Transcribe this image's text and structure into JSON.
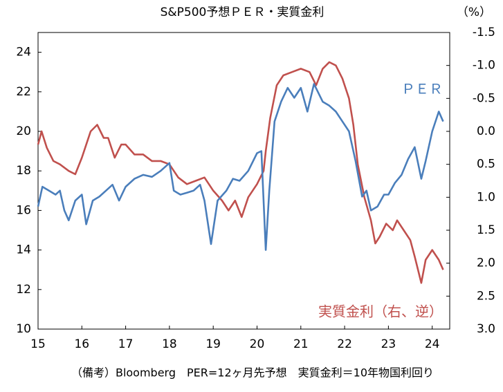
{
  "chart_data": {
    "type": "line",
    "title": "S&P500予想ＰＥＲ・実質金利",
    "y2_unit": "（%）",
    "footer": "（備考）Bloomberg　PER=12ヶ月先予想　実質金利＝10年物国利回り",
    "annotations": [
      "ＰＥＲ",
      "実質金利（右、逆）"
    ],
    "xlim": [
      15,
      24.4
    ],
    "xticks": [
      15,
      16,
      17,
      18,
      19,
      20,
      21,
      22,
      23,
      24
    ],
    "ylim": [
      10,
      25
    ],
    "yticks": [
      10,
      12,
      14,
      16,
      18,
      20,
      22,
      24
    ],
    "y2lim": [
      3.0,
      -1.5
    ],
    "y2ticks": [
      {
        "value": 3.0,
        "label": "3.0"
      },
      2.5,
      {
        "value": 2.0,
        "label": "2.0"
      },
      1.5,
      {
        "value": 1.0,
        "label": "1.0"
      },
      0.5,
      {
        "value": 0.0,
        "label": "0.0"
      },
      -0.5,
      {
        "value": -1.0,
        "label": "-1.0"
      },
      -1.5
    ],
    "grid": false,
    "series": [
      {
        "name": "ＰＥＲ",
        "color": "#4a7ebb",
        "x": [
          15.0,
          15.1,
          15.25,
          15.4,
          15.5,
          15.6,
          15.7,
          15.85,
          16.0,
          16.1,
          16.25,
          16.4,
          16.55,
          16.7,
          16.85,
          17.0,
          17.2,
          17.4,
          17.6,
          17.8,
          18.0,
          18.1,
          18.25,
          18.4,
          18.55,
          18.7,
          18.8,
          18.95,
          19.1,
          19.3,
          19.45,
          19.6,
          19.8,
          20.0,
          20.1,
          20.2,
          20.28,
          20.4,
          20.55,
          20.7,
          20.85,
          21.0,
          21.15,
          21.3,
          21.5,
          21.65,
          21.8,
          21.95,
          22.1,
          22.25,
          22.4,
          22.5,
          22.6,
          22.75,
          22.9,
          23.0,
          23.15,
          23.3,
          23.45,
          23.6,
          23.75,
          23.85,
          24.0,
          24.15,
          24.25
        ],
        "values": [
          16.2,
          17.2,
          17.0,
          16.8,
          17.0,
          16.0,
          15.5,
          16.5,
          16.8,
          15.3,
          16.5,
          16.7,
          17.0,
          17.3,
          16.5,
          17.2,
          17.6,
          17.8,
          17.7,
          18.0,
          18.4,
          17.0,
          16.8,
          16.9,
          17.0,
          17.3,
          16.5,
          14.3,
          16.5,
          17.0,
          17.6,
          17.5,
          18.0,
          18.9,
          19.0,
          14.0,
          17.0,
          20.5,
          21.5,
          22.2,
          21.7,
          22.2,
          21.0,
          22.4,
          21.5,
          21.3,
          21.0,
          20.5,
          20.0,
          18.5,
          16.7,
          17.0,
          16.0,
          16.2,
          16.8,
          16.8,
          17.4,
          17.8,
          18.6,
          19.2,
          17.6,
          18.5,
          20.0,
          21.0,
          20.5
        ]
      },
      {
        "name": "実質金利",
        "color": "#c0504d",
        "axis": "y2",
        "x": [
          15.0,
          15.08,
          15.2,
          15.35,
          15.5,
          15.7,
          15.85,
          16.0,
          16.2,
          16.35,
          16.5,
          16.6,
          16.75,
          16.9,
          17.0,
          17.2,
          17.4,
          17.6,
          17.8,
          18.0,
          18.2,
          18.4,
          18.6,
          18.8,
          19.0,
          19.2,
          19.35,
          19.5,
          19.65,
          19.8,
          20.0,
          20.15,
          20.2,
          20.3,
          20.45,
          20.6,
          20.8,
          21.0,
          21.2,
          21.35,
          21.5,
          21.65,
          21.8,
          21.95,
          22.1,
          22.2,
          22.3,
          22.45,
          22.6,
          22.7,
          22.8,
          22.95,
          23.1,
          23.2,
          23.35,
          23.5,
          23.6,
          23.75,
          23.85,
          24.0,
          24.15,
          24.25
        ],
        "values": [
          0.2,
          0.0,
          0.25,
          0.45,
          0.5,
          0.6,
          0.65,
          0.4,
          0.0,
          -0.1,
          0.1,
          0.1,
          0.4,
          0.2,
          0.2,
          0.35,
          0.35,
          0.45,
          0.45,
          0.5,
          0.7,
          0.8,
          0.75,
          0.7,
          0.9,
          1.05,
          1.2,
          1.05,
          1.3,
          1.0,
          0.8,
          0.6,
          0.3,
          -0.2,
          -0.7,
          -0.85,
          -0.9,
          -0.95,
          -0.9,
          -0.7,
          -0.95,
          -1.05,
          -1.0,
          -0.8,
          -0.5,
          -0.1,
          0.5,
          1.0,
          1.35,
          1.7,
          1.6,
          1.4,
          1.5,
          1.35,
          1.5,
          1.65,
          1.9,
          2.3,
          1.95,
          1.8,
          1.95,
          2.1
        ]
      }
    ]
  }
}
